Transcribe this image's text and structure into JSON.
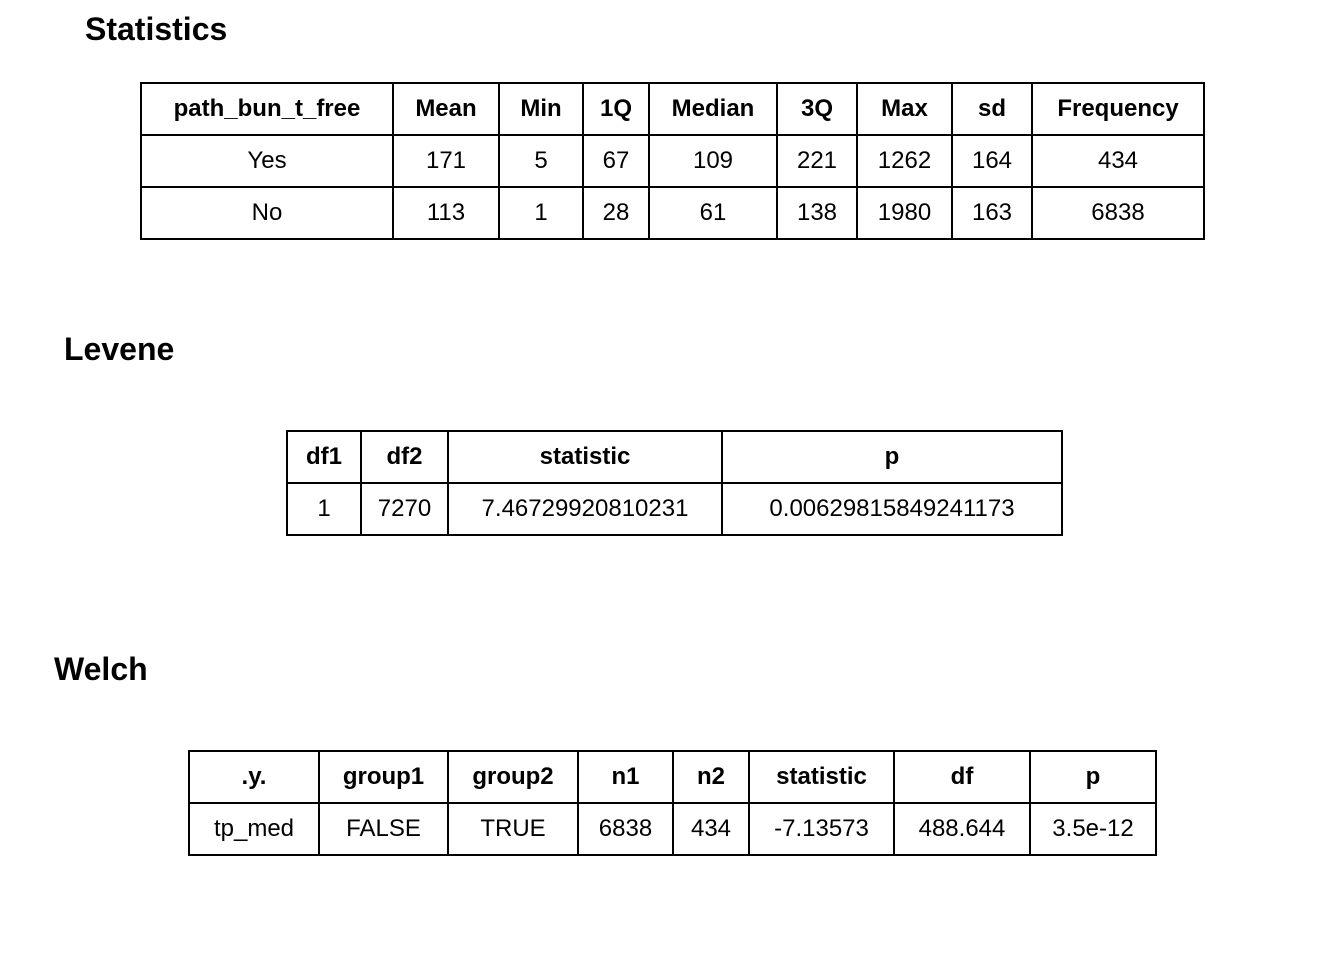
{
  "page": {
    "background_color": "#ffffff",
    "text_color": "#000000",
    "table_border_color": "#000000"
  },
  "chart_data": [
    {
      "type": "table",
      "title": "Statistics",
      "columns": [
        "path_bun_t_free",
        "Mean",
        "Min",
        "1Q",
        "Median",
        "3Q",
        "Max",
        "sd",
        "Frequency"
      ],
      "rows": [
        [
          "Yes",
          "171",
          "5",
          "67",
          "109",
          "221",
          "1262",
          "164",
          "434"
        ],
        [
          "No",
          "113",
          "1",
          "28",
          "61",
          "138",
          "1980",
          "163",
          "6838"
        ]
      ]
    },
    {
      "type": "table",
      "title": "Levene",
      "columns": [
        "df1",
        "df2",
        "statistic",
        "p"
      ],
      "rows": [
        [
          "1",
          "7270",
          "7.46729920810231",
          "0.00629815849241173"
        ]
      ]
    },
    {
      "type": "table",
      "title": "Welch",
      "columns": [
        ".y.",
        "group1",
        "group2",
        "n1",
        "n2",
        "statistic",
        "df",
        "p"
      ],
      "rows": [
        [
          "tp_med",
          "FALSE",
          "TRUE",
          "6838",
          "434",
          "-7.13573",
          "488.644",
          "3.5e-12"
        ]
      ]
    }
  ]
}
